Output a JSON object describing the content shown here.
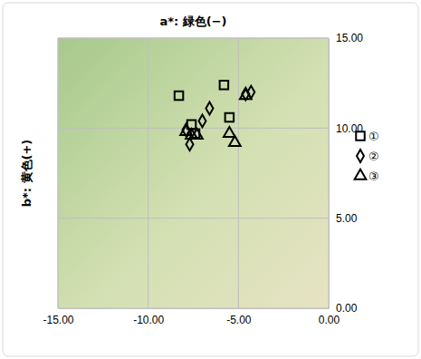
{
  "chart_data": {
    "type": "scatter",
    "title": "a*: 緑色(−)",
    "y_label": "b*: 黄色(+)",
    "xlim": [
      -15,
      0
    ],
    "xticks": [
      {
        "value": -15,
        "label": "-15.00"
      },
      {
        "value": -10,
        "label": "-10.00"
      },
      {
        "value": -5,
        "label": "-5.00"
      },
      {
        "value": 0,
        "label": "0.00"
      }
    ],
    "ylim": [
      0,
      15
    ],
    "yticks": [
      {
        "value": 0,
        "label": "0.00"
      },
      {
        "value": 5,
        "label": "5.00"
      },
      {
        "value": 10,
        "label": "10.00"
      },
      {
        "value": 15,
        "label": "15.00"
      }
    ],
    "grid": true,
    "legend": "right",
    "series": [
      {
        "name": "①",
        "color": "#000000",
        "marker": "square",
        "x": [
          -8.3,
          -7.6,
          -5.8,
          -5.5,
          -7.4
        ],
        "values": [
          11.8,
          10.2,
          12.4,
          10.6,
          9.7
        ]
      },
      {
        "name": "②",
        "color": "#000000",
        "marker": "diamond",
        "x": [
          -7.9,
          -7.7,
          -7.0,
          -6.6,
          -4.6,
          -4.3
        ],
        "values": [
          9.9,
          9.1,
          10.4,
          11.1,
          11.9,
          12.0
        ]
      },
      {
        "name": "③",
        "color": "#000000",
        "marker": "triangle",
        "x": [
          -7.9,
          -7.6,
          -7.3,
          -5.5,
          -5.2,
          -4.6
        ],
        "values": [
          9.8,
          9.6,
          9.6,
          9.7,
          9.2,
          11.8
        ]
      }
    ]
  }
}
